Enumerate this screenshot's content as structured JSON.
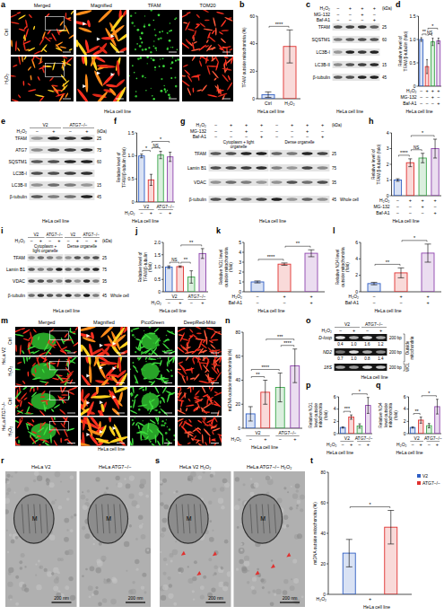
{
  "chart_data": [
    {
      "panel": "b",
      "type": "bar",
      "ylabel": "TFAM outside mitochondria (%)",
      "categories": [
        "Ctrl",
        "H₂O₂"
      ],
      "values": [
        3,
        38
      ],
      "errors": [
        2,
        12
      ],
      "colors": [
        "#2f5ec4",
        "#e0312f"
      ],
      "ylim": [
        0,
        60
      ],
      "yticks": [
        0,
        20,
        40,
        60
      ],
      "annotations": [
        "****"
      ],
      "caption": "HeLa cell line"
    },
    {
      "panel": "d",
      "type": "bar",
      "ylabel": "Relative level of TFAM/β-tubulin (fold)",
      "categories": [
        null,
        null,
        null,
        null
      ],
      "condition_rows": [
        {
          "label": "H₂O₂",
          "marks": [
            "−",
            "+",
            "+",
            "+"
          ]
        },
        {
          "label": "MG-132",
          "marks": [
            "−",
            "−",
            "+",
            "−"
          ]
        },
        {
          "label": "Baf-A1",
          "marks": [
            "−",
            "−",
            "−",
            "+"
          ]
        }
      ],
      "values": [
        1,
        0.42,
        0.95,
        0.97
      ],
      "errors": [
        0.04,
        0.15,
        0.08,
        0.06
      ],
      "colors": [
        "#2f5ec4",
        "#e0312f",
        "#3aa64a",
        "#8e44ad"
      ],
      "ylim": [
        0,
        1.5
      ],
      "yticks": [
        0,
        0.5,
        {
          "value": 1,
          "label": "1.0"
        },
        1.5
      ],
      "annotations": [
        "**",
        "NS",
        "*"
      ],
      "caption": "HeLa cell line"
    },
    {
      "panel": "f",
      "type": "bar",
      "ylabel": "Relative level of TFAM/β-tubulin (fold)",
      "categories": [
        null,
        null,
        null,
        null
      ],
      "group_labels": [
        "V2",
        "ATG7−/−"
      ],
      "condition_rows": [
        {
          "label": "H₂O₂",
          "marks": [
            "−",
            "+",
            "−",
            "+"
          ]
        }
      ],
      "values": [
        1,
        0.48,
        1.02,
        0.98
      ],
      "errors": [
        0.04,
        0.12,
        0.08,
        0.1
      ],
      "colors": [
        "#2f5ec4",
        "#e0312f",
        "#3aa64a",
        "#8e44ad"
      ],
      "ylim": [
        0,
        1.5
      ],
      "yticks": [
        0,
        0.5,
        {
          "value": 1,
          "label": "1.0"
        },
        1.5
      ],
      "annotations": [
        "*",
        "NS",
        "*"
      ],
      "caption": "HeLa cell line"
    },
    {
      "panel": "h",
      "type": "bar",
      "ylabel": "Relative level of TFAM/β-tubulin (fold)",
      "categories": [
        null,
        null,
        null,
        null
      ],
      "condition_rows": [
        {
          "label": "H₂O₂",
          "marks": [
            "−",
            "+",
            "+",
            "+"
          ]
        },
        {
          "label": "MG-132",
          "marks": [
            "−",
            "−",
            "+",
            "−"
          ]
        },
        {
          "label": "Baf-A1",
          "marks": [
            "−",
            "−",
            "−",
            "+"
          ]
        }
      ],
      "values": [
        1,
        2.1,
        2.4,
        3.0
      ],
      "errors": [
        0.08,
        0.25,
        0.3,
        0.6
      ],
      "colors": [
        "#2f5ec4",
        "#e0312f",
        "#3aa64a",
        "#8e44ad"
      ],
      "ylim": [
        0,
        4
      ],
      "yticks": [
        0,
        1,
        2,
        3,
        4
      ],
      "annotations": [
        "****",
        "NS",
        "*"
      ],
      "caption": "HeLa cell line"
    },
    {
      "panel": "j",
      "type": "bar",
      "ylabel": "Relative level of TFAM/β-tubulin (fold)",
      "categories": [
        null,
        null,
        null,
        null
      ],
      "group_labels": [
        "V2",
        "ATG7−/−"
      ],
      "condition_rows": [
        {
          "label": "H₂O₂",
          "marks": [
            "−",
            "+",
            "−",
            "+"
          ]
        }
      ],
      "values": [
        1,
        1.02,
        0.6,
        1.55
      ],
      "errors": [
        0.05,
        0.03,
        0.25,
        0.2
      ],
      "colors": [
        "#2f5ec4",
        "#e0312f",
        "#3aa64a",
        "#8e44ad"
      ],
      "ylim": [
        0,
        2
      ],
      "yticks": [
        0,
        0.5,
        {
          "value": 1,
          "label": "1.0"
        },
        1.5,
        {
          "value": 2,
          "label": "2.0"
        }
      ],
      "annotations": [
        "NS",
        "**",
        "**"
      ],
      "caption": "HeLa cell line"
    },
    {
      "panel": "k",
      "type": "bar",
      "ylabel": "Relative ND1 level outside mitochondria (fold)",
      "categories": [
        null,
        null,
        null
      ],
      "condition_rows": [
        {
          "label": "H₂O₂",
          "marks": [
            "−",
            "+",
            "+"
          ]
        },
        {
          "label": "Baf-A1",
          "marks": [
            "−",
            "−",
            "+"
          ]
        }
      ],
      "values": [
        1,
        2.8,
        3.9
      ],
      "errors": [
        0.1,
        0.12,
        0.35
      ],
      "colors": [
        "#2f5ec4",
        "#e0312f",
        "#8e44ad"
      ],
      "ylim": [
        0,
        5
      ],
      "yticks": [
        0,
        1,
        2,
        3,
        4,
        5
      ],
      "annotations": [
        "****",
        "**"
      ],
      "caption": "HeLa cell line"
    },
    {
      "panel": "l",
      "type": "bar",
      "ylabel": "Relative ND4 level outside mitochondria (fold)",
      "categories": [
        null,
        null,
        null
      ],
      "condition_rows": [
        {
          "label": "H₂O₂",
          "marks": [
            "−",
            "+",
            "+"
          ]
        },
        {
          "label": "Baf-A1",
          "marks": [
            "−",
            "−",
            "+"
          ]
        }
      ],
      "values": [
        1,
        2.3,
        4.7
      ],
      "errors": [
        0.15,
        0.6,
        1.1
      ],
      "colors": [
        "#2f5ec4",
        "#e0312f",
        "#8e44ad"
      ],
      "ylim": [
        0,
        6
      ],
      "yticks": [
        0,
        2,
        4,
        6
      ],
      "annotations": [
        "**",
        "*"
      ],
      "caption": "HeLa cell line"
    },
    {
      "panel": "n",
      "type": "bar",
      "ylabel": "mtDNA outside mitochondria (%)",
      "categories": [
        null,
        null,
        null,
        null
      ],
      "group_labels": [
        "V2",
        "ATG7−/−"
      ],
      "condition_rows": [
        {
          "label": "H₂O₂",
          "marks": [
            "−",
            "+",
            "−",
            "+"
          ]
        }
      ],
      "values": [
        12,
        30,
        34,
        52
      ],
      "errors": [
        6,
        10,
        12,
        14
      ],
      "colors": [
        "#2f5ec4",
        "#e0312f",
        "#3aa64a",
        "#8e44ad"
      ],
      "ylim": [
        0,
        80
      ],
      "yticks": [
        0,
        20,
        40,
        60,
        80
      ],
      "annotations": [
        "**",
        "****",
        "***",
        "****"
      ],
      "caption": "HeLa cell line"
    },
    {
      "panel": "p",
      "type": "bar",
      "ylabel": "Relative ND1 level outside mitochondria (fold)",
      "categories": [
        null,
        null,
        null,
        null
      ],
      "group_labels": [
        "V2",
        "ATG7−/−"
      ],
      "condition_rows": [
        {
          "label": "H₂O₂",
          "marks": [
            "−",
            "+",
            "−",
            "+"
          ]
        }
      ],
      "values": [
        1,
        2.7,
        1.25,
        4.6
      ],
      "errors": [
        0.1,
        0.35,
        0.35,
        1.3
      ],
      "colors": [
        "#2f5ec4",
        "#e0312f",
        "#3aa64a",
        "#8e44ad"
      ],
      "ylim": [
        0,
        6
      ],
      "yticks": [
        0,
        2,
        4,
        6
      ],
      "annotations": [
        "***",
        "*"
      ],
      "caption": "HeLa cell line"
    },
    {
      "panel": "q",
      "type": "bar",
      "ylabel": "Relative ND4 level outside mitochondria (fold)",
      "categories": [
        null,
        null,
        null,
        null
      ],
      "group_labels": [
        "V2",
        "ATG7−/−"
      ],
      "condition_rows": [
        {
          "label": "H₂O₂",
          "marks": [
            "−",
            "+",
            "−",
            "+"
          ]
        }
      ],
      "values": [
        1,
        2.2,
        1.3,
        4.4
      ],
      "errors": [
        0.1,
        0.5,
        0.35,
        1.2
      ],
      "colors": [
        "#2f5ec4",
        "#e0312f",
        "#3aa64a",
        "#8e44ad"
      ],
      "ylim": [
        0,
        6
      ],
      "yticks": [
        0,
        2,
        4,
        6
      ],
      "annotations": [
        "**",
        "*"
      ],
      "caption": "HeLa cell line"
    },
    {
      "panel": "t",
      "type": "bar",
      "ylabel": "mtDNA outside mitochondria (%)",
      "categories": [
        null,
        null
      ],
      "condition_rows": [
        {
          "label": "H₂O₂",
          "marks": [
            "+"
          ]
        }
      ],
      "values": [
        27,
        44
      ],
      "errors": [
        9,
        11
      ],
      "colors": [
        "#2f5ec4",
        "#e0312f"
      ],
      "legend": "right",
      "legend_labels": [
        "V2",
        "ATG7−/−"
      ],
      "ylim": [
        0,
        80
      ],
      "yticks": [
        0,
        20,
        40,
        60,
        80
      ],
      "annotations": [
        "*"
      ],
      "caption": "HeLa cell line"
    }
  ],
  "figure": {
    "a": {
      "letter": "a",
      "columns": [
        "Merged",
        "Magnified",
        "TFAM",
        "TOM20"
      ],
      "rows": [
        "Ctrl",
        "H₂O₂"
      ],
      "caption": "HeLa cell line"
    },
    "c": {
      "letter": "c",
      "conditions": [
        {
          "label": "H₂O₂",
          "marks": [
            "−",
            "+",
            "+",
            "+"
          ]
        },
        {
          "label": "MG-132",
          "marks": [
            "−",
            "−",
            "+",
            "−"
          ]
        },
        {
          "label": "Baf-A1",
          "marks": [
            "−",
            "−",
            "−",
            "+"
          ]
        }
      ],
      "kda_unit": "(kDa)",
      "bands": [
        {
          "label": "TFAM",
          "kda": 25
        },
        {
          "label": "SQSTM1",
          "kda": 60
        },
        {
          "label": "LC3B-I"
        },
        {
          "label": "LC3B-II",
          "kda": 15
        },
        {
          "label": "β-tubulin",
          "kda": 45
        }
      ],
      "caption": "HeLa cell line"
    },
    "e": {
      "letter": "e",
      "groups": [
        "V2",
        "ATG7−/−"
      ],
      "conditions": [
        {
          "label": "H₂O₂",
          "marks": [
            "−",
            "+",
            "−",
            "+"
          ]
        }
      ],
      "kda_unit": "(kDa)",
      "bands": [
        {
          "label": "TFAM",
          "kda": 25
        },
        {
          "label": "ATG7",
          "kda": 75
        },
        {
          "label": "SQSTM1",
          "kda": 60
        },
        {
          "label": "LC3B-I"
        },
        {
          "label": "LC3B-II",
          "kda": 15
        },
        {
          "label": "β-tubulin",
          "kda": 45
        }
      ],
      "caption": "HeLa cell line"
    },
    "g": {
      "letter": "g",
      "conditions": [
        {
          "label": "H₂O₂",
          "marks": [
            "−",
            "+",
            "+",
            "+",
            "−",
            "+",
            "+",
            "+"
          ]
        },
        {
          "label": "MG-132",
          "marks": [
            "−",
            "−",
            "+",
            "−",
            "−",
            "−",
            "+",
            "−"
          ]
        },
        {
          "label": "Baf-A1",
          "marks": [
            "−",
            "−",
            "−",
            "+",
            "−",
            "−",
            "−",
            "+"
          ]
        }
      ],
      "kda_unit": "(kDa)",
      "fractions": [
        "Cytoplasm + light organelle",
        "Dense organelle"
      ],
      "bands": [
        {
          "label": "TFAM",
          "kda": 25
        },
        {
          "label": "Lamin B1",
          "kda": 75
        },
        {
          "label": "VDAC",
          "kda": 35
        }
      ],
      "whole_cell": {
        "label": "β-tubulin",
        "kda": 45
      },
      "whole_cell_label": "Whole cell",
      "caption": "HeLa cell line"
    },
    "i": {
      "letter": "i",
      "groups": [
        "V2",
        "ATG7−/−",
        "V2",
        "ATG7−/−"
      ],
      "conditions": [
        {
          "label": "H₂O₂",
          "marks": [
            "−",
            "+",
            "−",
            "+",
            "−",
            "+",
            "−",
            "+"
          ]
        }
      ],
      "kda_unit": "(kDa)",
      "fractions": [
        "Cytoplasm + light organelle",
        "Dense organelle"
      ],
      "bands": [
        {
          "label": "TFAM",
          "kda": 25
        },
        {
          "label": "Lamin B1",
          "kda": 75
        },
        {
          "label": "VDAC",
          "kda": 35
        }
      ],
      "whole_cell": {
        "label": "β-tubulin",
        "kda": 45
      },
      "whole_cell_label": "Whole cell",
      "caption": "HeLa cell line"
    },
    "m": {
      "letter": "m",
      "columns": [
        "Merged",
        "Magnified",
        "PicoGreen",
        "DeepRed-Mito"
      ],
      "groups": [
        "HeLa V2",
        "HeLa ATG7−/−"
      ],
      "rows": [
        "Ctrl",
        "H₂O₂"
      ],
      "caption": "HeLa cell line"
    },
    "o": {
      "letter": "o",
      "groups": [
        "V2",
        "ATG7−/−"
      ],
      "conditions": [
        {
          "label": "H₂O₂",
          "marks": [
            "−",
            "+",
            "−",
            "+"
          ]
        }
      ],
      "sections": [
        {
          "label": "Outside mitochondria",
          "bands": [
            {
              "label": "D-loop",
              "size": "200 bp",
              "values": [
                "0.4",
                "1.0",
                "1.6",
                "1.2"
              ]
            },
            {
              "label": "ND2",
              "size": "200 bp",
              "values": [
                "0.7",
                "1.0",
                "0.8",
                "1.4"
              ]
            }
          ]
        },
        {
          "label": "WCL",
          "bands": [
            {
              "label": "18S",
              "size": "200 bp"
            }
          ]
        }
      ],
      "caption": "HeLa cell line"
    },
    "r": {
      "letter": "r",
      "images": [
        "HeLa V2",
        "HeLa ATG7−/−"
      ],
      "mito_label": "M",
      "scale_bar": "200 nm"
    },
    "s": {
      "letter": "s",
      "images": [
        "HeLa V2 H₂O₂",
        "HeLa ATG7−/− H₂O₂"
      ],
      "mito_label": "M",
      "scale_bar": "200 nm"
    }
  }
}
